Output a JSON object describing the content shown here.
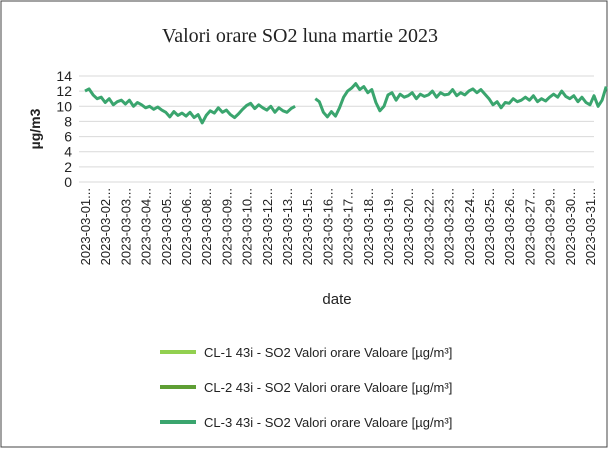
{
  "chart_data": {
    "type": "line",
    "title": "Valori orare SO2 luna martie 2023",
    "y_label": "µg/m3",
    "x_label": "date",
    "categories": [
      "2023-03-01...",
      null,
      null,
      null,
      null,
      "2023-03-02...",
      null,
      null,
      null,
      null,
      "2023-03-03...",
      null,
      null,
      null,
      null,
      "2023-03-04...",
      null,
      null,
      null,
      null,
      "2023-03-05...",
      null,
      null,
      null,
      null,
      "2023-03-06...",
      null,
      null,
      null,
      null,
      "2023-03-08...",
      null,
      null,
      null,
      null,
      "2023-03-09...",
      null,
      null,
      null,
      null,
      "2023-03-10...",
      null,
      null,
      null,
      null,
      "2023-03-12...",
      null,
      null,
      null,
      null,
      "2023-03-13...",
      null,
      null,
      null,
      null,
      "2023-03-15...",
      null,
      null,
      null,
      null,
      "2023-03-16...",
      null,
      null,
      null,
      null,
      "2023-03-17...",
      null,
      null,
      null,
      null,
      "2023-03-18...",
      null,
      null,
      null,
      null,
      "2023-03-19...",
      null,
      null,
      null,
      null,
      "2023-03-20...",
      null,
      null,
      null,
      null,
      "2023-03-22...",
      null,
      null,
      null,
      null,
      "2023-03-23...",
      null,
      null,
      null,
      null,
      "2023-03-24...",
      null,
      null,
      null,
      null,
      "2023-03-25...",
      null,
      null,
      null,
      null,
      "2023-03-26...",
      null,
      null,
      null,
      null,
      "2023-03-27...",
      null,
      null,
      null,
      null,
      "2023-03-29...",
      null,
      null,
      null,
      null,
      "2023-03-30...",
      null,
      null,
      null,
      null,
      "2023-03-31...",
      null,
      null,
      null,
      null
    ],
    "series": [
      {
        "name": "CL-1 43i - SO2 Valori orare Valoare [µg/m³]",
        "color": "#92d050",
        "values": [
          null,
          null,
          null,
          null,
          null,
          null,
          null,
          null,
          null,
          null,
          null,
          null,
          null,
          null,
          null,
          null,
          null,
          null,
          null,
          null,
          null,
          null,
          null,
          null,
          null,
          null,
          null,
          null,
          null,
          null,
          null,
          null,
          null,
          null,
          null,
          null,
          null,
          null,
          null,
          null,
          null,
          null,
          null,
          null,
          null,
          null,
          null,
          null,
          null,
          null,
          null,
          null,
          null,
          null,
          null,
          null,
          null,
          null,
          null,
          null,
          null,
          null,
          null,
          null,
          null,
          null,
          null,
          null,
          null,
          null,
          null,
          null,
          null,
          null,
          null,
          null,
          null,
          null,
          null,
          null,
          null,
          null,
          null,
          null,
          null,
          null,
          null,
          null,
          null,
          null,
          null,
          null,
          null,
          null,
          null,
          null,
          null,
          null,
          null,
          null,
          null,
          null,
          null,
          null,
          null,
          null,
          null,
          null,
          null,
          null,
          null,
          null,
          null,
          null,
          null,
          null,
          null,
          null,
          null,
          null,
          null,
          null,
          null,
          null,
          null,
          null,
          null,
          null,
          null,
          null
        ]
      },
      {
        "name": "CL-2 43i - SO2 Valori orare Valoare [µg/m³]",
        "color": "#5e9e34",
        "values": [
          null,
          null,
          null,
          null,
          null,
          null,
          null,
          null,
          null,
          null,
          null,
          null,
          null,
          null,
          null,
          null,
          null,
          null,
          null,
          null,
          null,
          null,
          null,
          null,
          null,
          null,
          null,
          null,
          null,
          null,
          null,
          null,
          null,
          null,
          null,
          null,
          null,
          null,
          null,
          null,
          null,
          null,
          null,
          null,
          null,
          null,
          null,
          null,
          null,
          null,
          null,
          null,
          null,
          null,
          null,
          null,
          null,
          null,
          null,
          null,
          null,
          null,
          null,
          null,
          null,
          null,
          null,
          null,
          null,
          null,
          null,
          null,
          null,
          null,
          null,
          null,
          null,
          null,
          null,
          null,
          null,
          null,
          null,
          null,
          null,
          null,
          null,
          null,
          null,
          null,
          null,
          null,
          null,
          null,
          null,
          null,
          null,
          null,
          null,
          null,
          null,
          null,
          null,
          null,
          null,
          null,
          null,
          null,
          null,
          null,
          null,
          null,
          null,
          null,
          null,
          null,
          null,
          null,
          null,
          null,
          null,
          null,
          null,
          null,
          null,
          null,
          null,
          null,
          null,
          null
        ]
      },
      {
        "name": "CL-3 43i - SO2 Valori orare Valoare [µg/m³]",
        "color": "#3aa56e",
        "values": [
          12,
          12.3,
          11.5,
          11,
          11.2,
          10.5,
          11,
          10.2,
          10.6,
          10.8,
          10.3,
          10.8,
          10,
          10.5,
          10.2,
          9.8,
          10,
          9.6,
          9.9,
          9.5,
          9.2,
          8.6,
          9.3,
          8.8,
          9.1,
          8.7,
          9.2,
          8.5,
          8.9,
          7.8,
          8.8,
          9.4,
          9.1,
          9.8,
          9.2,
          9.5,
          8.9,
          8.5,
          9,
          9.6,
          10.1,
          10.4,
          9.7,
          10.2,
          9.8,
          9.5,
          10,
          9.2,
          9.8,
          9.4,
          9.2,
          9.7,
          10,
          null,
          null,
          null,
          null,
          11,
          10.6,
          9.2,
          8.6,
          9.3,
          8.7,
          9.8,
          11.2,
          12,
          12.4,
          13,
          12.2,
          12.6,
          11.8,
          12.2,
          10.5,
          9.4,
          10,
          11.5,
          11.8,
          10.8,
          11.6,
          11.2,
          11.4,
          11.8,
          11,
          11.6,
          11.3,
          11.5,
          12,
          11.2,
          11.8,
          11.5,
          11.6,
          12.2,
          11.4,
          11.8,
          11.5,
          12,
          12.3,
          11.8,
          12.2,
          11.6,
          11,
          10.2,
          10.6,
          9.8,
          10.5,
          10.4,
          11,
          10.6,
          10.8,
          11.2,
          10.8,
          11.4,
          10.6,
          11,
          10.7,
          11.2,
          11.6,
          11.2,
          12,
          11.3,
          11,
          11.4,
          10.6,
          11.2,
          10.5,
          10.2,
          11.4,
          10,
          10.8,
          12.6
        ]
      }
    ],
    "ylim": [
      0,
      14
    ],
    "yticks": [
      0,
      2,
      4,
      6,
      8,
      10,
      12,
      14
    ],
    "grid": true
  }
}
